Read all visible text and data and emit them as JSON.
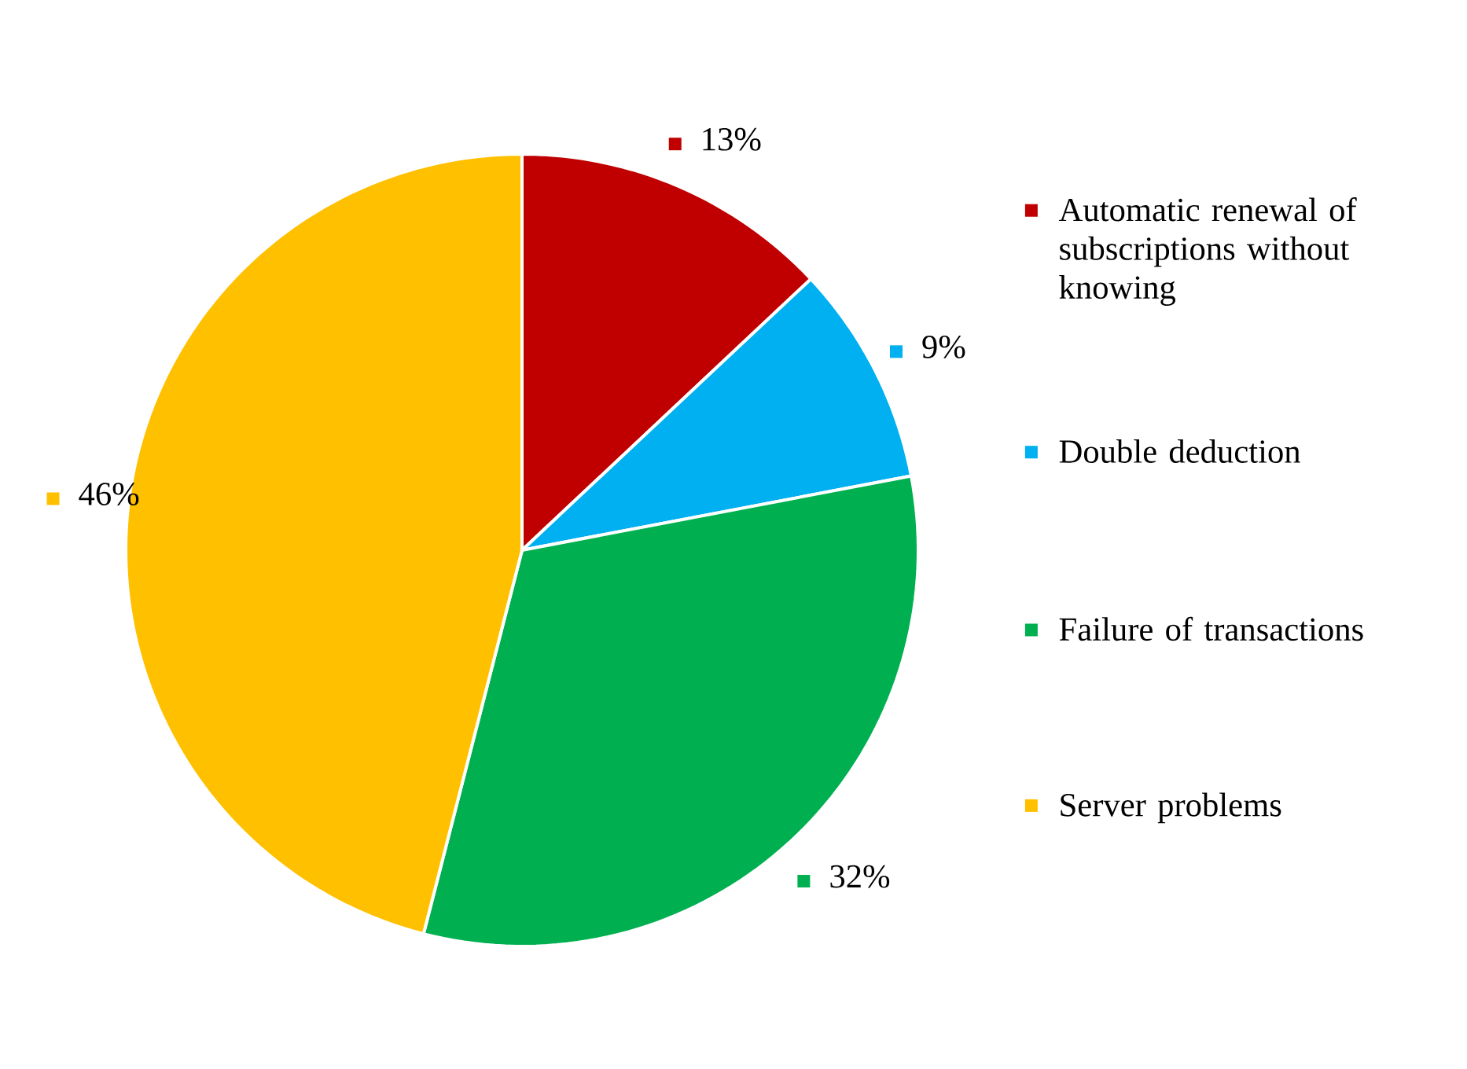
{
  "chart_data": {
    "type": "pie",
    "categories": [
      "Automatic renewal of subscriptions without knowing",
      "Double deduction",
      "Failure of transactions",
      "Server problems"
    ],
    "values": [
      13,
      9,
      32,
      46
    ],
    "colors": [
      "#c00000",
      "#00b0f0",
      "#00b050",
      "#ffc000"
    ],
    "value_labels": [
      "13%",
      "9%",
      "32%",
      "46%"
    ],
    "legend": "right"
  }
}
